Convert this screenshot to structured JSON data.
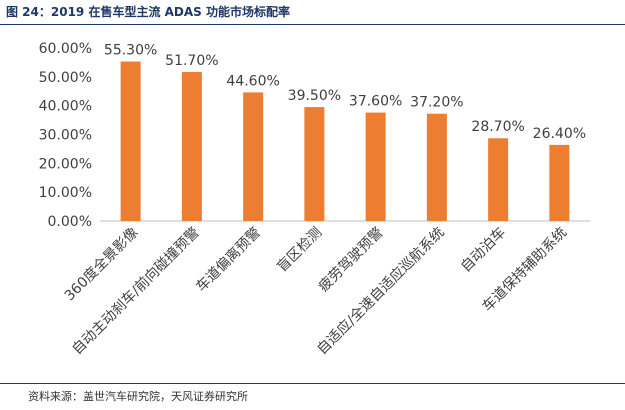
{
  "figure_title": "图 24：2019 在售车型主流 ADAS 功能市场标配率",
  "source_note": "资料来源：盖世汽车研究院，天风证券研究所",
  "colors": {
    "bar": "#ed7d31",
    "title": "#1f3864",
    "text": "#404040",
    "axis": "#bfbfbf"
  },
  "chart_data": {
    "type": "bar",
    "title": "",
    "xlabel": "",
    "ylabel": "",
    "ylim": [
      0,
      60
    ],
    "y_ticks": [
      "0.00%",
      "10.00%",
      "20.00%",
      "30.00%",
      "40.00%",
      "50.00%",
      "60.00%"
    ],
    "grid": false,
    "legend": "none",
    "categories": [
      "360度全景影像",
      "自动主动刹车/前向碰撞预警",
      "车道偏离预警",
      "盲区检测",
      "疲劳驾驶预警",
      "自适应/全速自适应巡航系统",
      "自动泊车",
      "车道保持辅助系统"
    ],
    "values": [
      55.3,
      51.7,
      44.6,
      39.5,
      37.6,
      37.2,
      28.7,
      26.4
    ],
    "data_labels": [
      "55.30%",
      "51.70%",
      "44.60%",
      "39.50%",
      "37.60%",
      "37.20%",
      "28.70%",
      "26.40%"
    ]
  }
}
